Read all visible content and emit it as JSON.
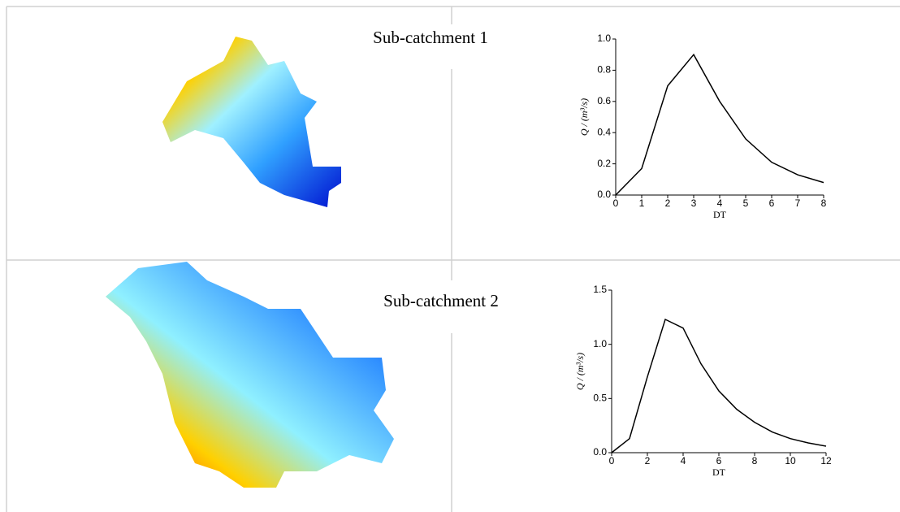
{
  "chart_data": [
    {
      "type": "line",
      "title": "Sub-catchment 1",
      "x_label": "DT",
      "y_label": "Q / (m³/s)",
      "x": [
        0,
        1,
        2,
        3,
        4,
        5,
        6,
        7,
        8
      ],
      "values": [
        0,
        0.17,
        0.7,
        0.9,
        0.6,
        0.36,
        0.21,
        0.13,
        0.08
      ],
      "color": "#000000",
      "xlim": [
        0,
        8
      ],
      "xticks": [
        0,
        1,
        2,
        3,
        4,
        5,
        6,
        7,
        8
      ],
      "ylim": [
        0,
        1
      ],
      "yticks": [
        {
          "value": 0,
          "label": "0.0"
        },
        0.2,
        0.4,
        0.6,
        0.8,
        {
          "value": 1,
          "label": "1.0"
        }
      ]
    },
    {
      "type": "line",
      "title": "Sub-catchment 2",
      "x_label": "DT",
      "y_label": "Q / (m³/s)",
      "x": [
        0,
        1,
        2,
        3,
        4,
        5,
        6,
        7,
        8,
        9,
        10,
        11,
        12
      ],
      "values": [
        0,
        0.13,
        0.7,
        1.23,
        1.15,
        0.82,
        0.57,
        0.4,
        0.28,
        0.19,
        0.13,
        0.09,
        0.06
      ],
      "color": "#000000",
      "xlim": [
        0,
        12
      ],
      "xticks": [
        0,
        2,
        4,
        6,
        8,
        10,
        12
      ],
      "ylim": [
        0,
        1.5
      ],
      "yticks": [
        {
          "value": 0,
          "label": "0.0"
        },
        0.5,
        {
          "value": 1,
          "label": "1.0"
        },
        1.5
      ]
    }
  ]
}
